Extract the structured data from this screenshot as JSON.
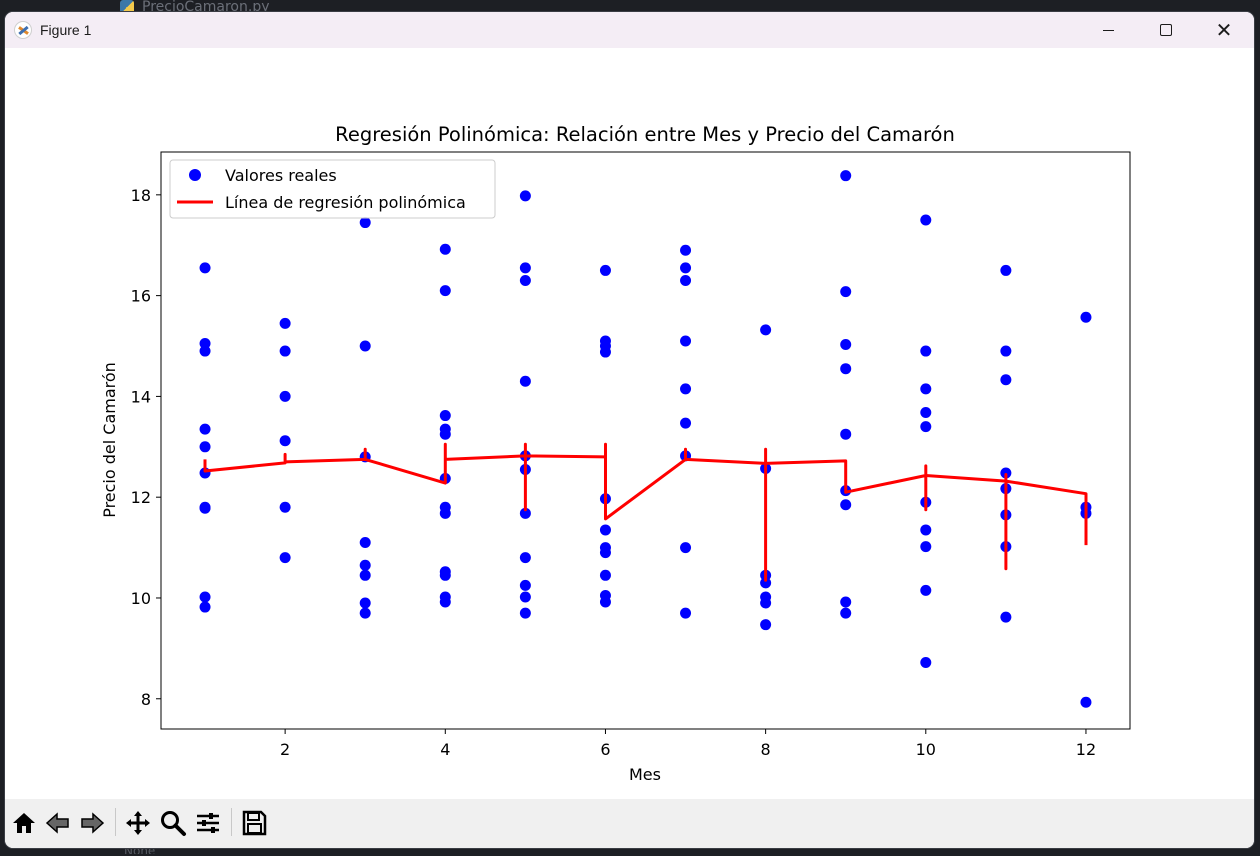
{
  "background": {
    "editor_tab": "PrecioCamaron.py",
    "bottom_text": "None"
  },
  "window": {
    "title": "Figure 1"
  },
  "toolbar": {
    "items": [
      "home-icon",
      "back-icon",
      "forward-icon",
      "pan-icon",
      "zoom-icon",
      "configure-icon",
      "save-icon"
    ]
  },
  "colors": {
    "scatter": "#0000ff",
    "line": "#ff0000",
    "axes": "#000000"
  },
  "chart_data": {
    "type": "scatter",
    "title": "Regresión Polinómica: Relación entre Mes y Precio del Camarón",
    "xlabel": "Mes",
    "ylabel": "Precio del Camarón",
    "xlim": [
      0.45,
      12.55
    ],
    "ylim": [
      7.4,
      18.85
    ],
    "xticks": [
      2,
      4,
      6,
      8,
      10,
      12
    ],
    "yticks": [
      8,
      10,
      12,
      14,
      16,
      18
    ],
    "grid": false,
    "legend_position": "upper-left",
    "series": [
      {
        "name": "Valores reales",
        "kind": "scatter",
        "points": [
          [
            1,
            16.55
          ],
          [
            1,
            15.05
          ],
          [
            1,
            14.9
          ],
          [
            1,
            13.35
          ],
          [
            1,
            13.0
          ],
          [
            1,
            12.48
          ],
          [
            1,
            11.8
          ],
          [
            1,
            11.78
          ],
          [
            1,
            10.02
          ],
          [
            1,
            9.82
          ],
          [
            2,
            15.45
          ],
          [
            2,
            14.9
          ],
          [
            2,
            14.0
          ],
          [
            2,
            13.12
          ],
          [
            2,
            11.8
          ],
          [
            2,
            10.8
          ],
          [
            3,
            17.45
          ],
          [
            3,
            15.0
          ],
          [
            3,
            12.8
          ],
          [
            3,
            11.1
          ],
          [
            3,
            10.65
          ],
          [
            3,
            10.45
          ],
          [
            3,
            9.9
          ],
          [
            3,
            9.7
          ],
          [
            4,
            16.92
          ],
          [
            4,
            16.1
          ],
          [
            4,
            13.62
          ],
          [
            4,
            13.35
          ],
          [
            4,
            13.25
          ],
          [
            4,
            12.37
          ],
          [
            4,
            11.8
          ],
          [
            4,
            11.68
          ],
          [
            4,
            10.52
          ],
          [
            4,
            10.45
          ],
          [
            4,
            10.02
          ],
          [
            4,
            9.92
          ],
          [
            5,
            17.98
          ],
          [
            5,
            16.55
          ],
          [
            5,
            16.3
          ],
          [
            5,
            14.3
          ],
          [
            5,
            12.82
          ],
          [
            5,
            12.55
          ],
          [
            5,
            11.68
          ],
          [
            5,
            10.8
          ],
          [
            5,
            10.25
          ],
          [
            5,
            10.02
          ],
          [
            5,
            9.7
          ],
          [
            6,
            16.5
          ],
          [
            6,
            15.1
          ],
          [
            6,
            15.0
          ],
          [
            6,
            14.88
          ],
          [
            6,
            11.97
          ],
          [
            6,
            11.35
          ],
          [
            6,
            11.0
          ],
          [
            6,
            10.9
          ],
          [
            6,
            10.45
          ],
          [
            6,
            10.05
          ],
          [
            6,
            9.92
          ],
          [
            7,
            16.9
          ],
          [
            7,
            16.55
          ],
          [
            7,
            16.3
          ],
          [
            7,
            15.1
          ],
          [
            7,
            14.15
          ],
          [
            7,
            13.47
          ],
          [
            7,
            12.82
          ],
          [
            7,
            11.0
          ],
          [
            7,
            9.7
          ],
          [
            8,
            15.32
          ],
          [
            8,
            12.57
          ],
          [
            8,
            10.45
          ],
          [
            8,
            10.3
          ],
          [
            8,
            10.02
          ],
          [
            8,
            9.9
          ],
          [
            8,
            9.47
          ],
          [
            9,
            18.38
          ],
          [
            9,
            16.08
          ],
          [
            9,
            15.03
          ],
          [
            9,
            14.55
          ],
          [
            9,
            13.25
          ],
          [
            9,
            12.13
          ],
          [
            9,
            11.85
          ],
          [
            9,
            9.92
          ],
          [
            9,
            9.7
          ],
          [
            10,
            17.5
          ],
          [
            10,
            14.9
          ],
          [
            10,
            14.15
          ],
          [
            10,
            13.68
          ],
          [
            10,
            13.4
          ],
          [
            10,
            11.9
          ],
          [
            10,
            11.35
          ],
          [
            10,
            11.02
          ],
          [
            10,
            10.15
          ],
          [
            10,
            8.72
          ],
          [
            11,
            16.5
          ],
          [
            11,
            14.9
          ],
          [
            11,
            14.33
          ],
          [
            11,
            12.48
          ],
          [
            11,
            12.17
          ],
          [
            11,
            11.65
          ],
          [
            11,
            11.02
          ],
          [
            11,
            9.62
          ],
          [
            12,
            15.57
          ],
          [
            12,
            11.8
          ],
          [
            12,
            11.68
          ],
          [
            12,
            7.93
          ]
        ]
      },
      {
        "name": "Línea de regresión polinómica",
        "kind": "line",
        "points": [
          [
            1,
            12.75
          ],
          [
            1,
            12.52
          ],
          [
            2,
            12.68
          ],
          [
            2,
            12.85
          ],
          [
            2,
            12.7
          ],
          [
            3,
            12.75
          ],
          [
            3,
            12.95
          ],
          [
            3,
            12.75
          ],
          [
            4,
            12.28
          ],
          [
            4,
            13.05
          ],
          [
            4,
            12.75
          ],
          [
            5,
            12.82
          ],
          [
            5,
            13.05
          ],
          [
            5,
            11.75
          ],
          [
            5,
            12.82
          ],
          [
            6,
            12.8
          ],
          [
            6,
            13.05
          ],
          [
            6,
            12.65
          ],
          [
            6,
            11.57
          ],
          [
            7,
            12.75
          ],
          [
            7,
            12.95
          ],
          [
            7,
            12.75
          ],
          [
            8,
            12.67
          ],
          [
            8,
            12.95
          ],
          [
            8,
            10.35
          ],
          [
            8,
            12.67
          ],
          [
            9,
            12.72
          ],
          [
            9,
            12.1
          ],
          [
            10,
            12.43
          ],
          [
            10,
            12.62
          ],
          [
            10,
            11.75
          ],
          [
            10,
            12.43
          ],
          [
            11,
            12.32
          ],
          [
            11,
            12.45
          ],
          [
            11,
            10.58
          ],
          [
            11,
            12.32
          ],
          [
            12,
            12.07
          ],
          [
            12,
            11.05
          ]
        ]
      }
    ]
  }
}
